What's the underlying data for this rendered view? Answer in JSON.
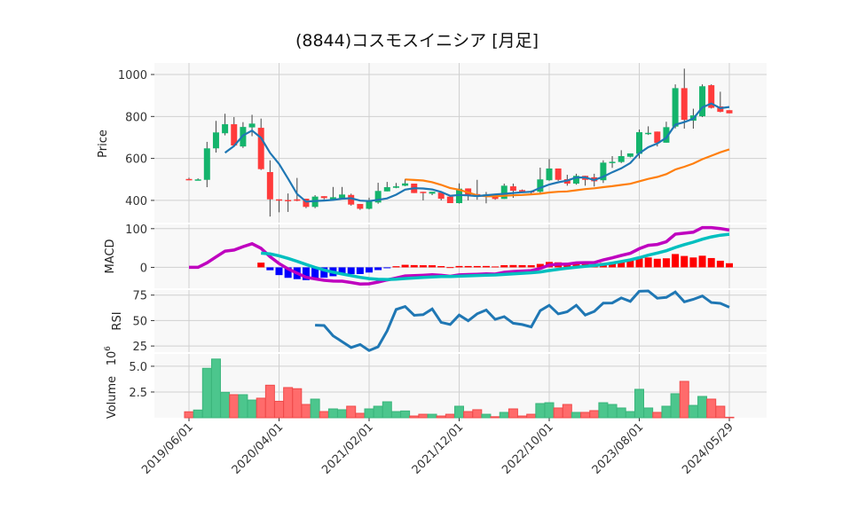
{
  "chart_data": {
    "type": "candlestick",
    "title": "(8844)コスモスイニシア  [月足]",
    "x_tick_labels": [
      {
        "index": 0,
        "label": "2019/06/01"
      },
      {
        "index": 10,
        "label": "2020/04/01"
      },
      {
        "index": 20,
        "label": "2021/02/01"
      },
      {
        "index": 30,
        "label": "2021/12/01"
      },
      {
        "index": 40,
        "label": "2022/10/01"
      },
      {
        "index": 50,
        "label": "2023/08/01"
      },
      {
        "index": 60,
        "label": "2024/05/29"
      }
    ],
    "colors": {
      "up": "#14b46c",
      "down": "#ff3b3b",
      "vol_up": "#4cc68d",
      "vol_down": "#ff6b6b",
      "ma_short": "#1f77b4",
      "ma_long": "#ff7f0e",
      "macd": "#bf00bf",
      "signal": "#00bfbf",
      "hist_pos": "#ff0000",
      "hist_neg": "#0000ff",
      "rsi": "#1f77b4",
      "grid": "#d0d0d0",
      "panel_bg": "#f8f8f8"
    },
    "price": {
      "ylabel": "Price",
      "ylim": [
        294,
        1055
      ],
      "yticks": [
        400,
        600,
        800,
        1000
      ],
      "ma_windows": [
        5,
        25
      ],
      "ohlc": [
        [
          502,
          508,
          498,
          500
        ],
        [
          498,
          505,
          496,
          500
        ],
        [
          498,
          679,
          463,
          648
        ],
        [
          648,
          779,
          628,
          724
        ],
        [
          720,
          813,
          710,
          763
        ],
        [
          763,
          797,
          660,
          662
        ],
        [
          657,
          773,
          650,
          750
        ],
        [
          748,
          808,
          706,
          766
        ],
        [
          746,
          790,
          545,
          549
        ],
        [
          535,
          591,
          323,
          405
        ],
        [
          405,
          405,
          343,
          400
        ],
        [
          402,
          433,
          345,
          400
        ],
        [
          405,
          507,
          396,
          398
        ],
        [
          408,
          408,
          363,
          369
        ],
        [
          369,
          425,
          363,
          418
        ],
        [
          420,
          420,
          405,
          411
        ],
        [
          406,
          464,
          400,
          415
        ],
        [
          411,
          464,
          408,
          428
        ],
        [
          426,
          432,
          375,
          380
        ],
        [
          383,
          383,
          355,
          360
        ],
        [
          360,
          413,
          357,
          400
        ],
        [
          390,
          484,
          384,
          445
        ],
        [
          443,
          488,
          443,
          463
        ],
        [
          460,
          483,
          458,
          467
        ],
        [
          470,
          502,
          468,
          481
        ],
        [
          480,
          480,
          435,
          435
        ],
        [
          441,
          441,
          400,
          437
        ],
        [
          432,
          441,
          425,
          441
        ],
        [
          437,
          437,
          400,
          408
        ],
        [
          418,
          418,
          387,
          387
        ],
        [
          387,
          481,
          385,
          456
        ],
        [
          457,
          457,
          400,
          426
        ],
        [
          430,
          498,
          403,
          426
        ],
        [
          424,
          440,
          386,
          428
        ],
        [
          426,
          426,
          403,
          407
        ],
        [
          407,
          480,
          407,
          470
        ],
        [
          467,
          480,
          412,
          446
        ],
        [
          449,
          452,
          438,
          441
        ],
        [
          444,
          447,
          428,
          441
        ],
        [
          441,
          556,
          428,
          500
        ],
        [
          496,
          597,
          493,
          552
        ],
        [
          552,
          552,
          493,
          498
        ],
        [
          501,
          522,
          470,
          480
        ],
        [
          480,
          527,
          475,
          517
        ],
        [
          517,
          517,
          470,
          498
        ],
        [
          510,
          527,
          466,
          491
        ],
        [
          496,
          591,
          483,
          580
        ],
        [
          581,
          611,
          555,
          584
        ],
        [
          583,
          639,
          578,
          611
        ],
        [
          608,
          624,
          605,
          624
        ],
        [
          622,
          738,
          600,
          725
        ],
        [
          718,
          753,
          712,
          722
        ],
        [
          728,
          728,
          657,
          674
        ],
        [
          675,
          775,
          675,
          749
        ],
        [
          752,
          953,
          743,
          935
        ],
        [
          935,
          1028,
          742,
          784
        ],
        [
          780,
          837,
          742,
          805
        ],
        [
          801,
          953,
          797,
          944
        ],
        [
          949,
          953,
          838,
          841
        ],
        [
          848,
          918,
          820,
          822
        ],
        [
          830,
          830,
          815,
          815
        ]
      ]
    },
    "macd": {
      "ylabel": "MACD",
      "ylim": [
        -54,
        111
      ],
      "yticks": [
        0,
        100
      ],
      "fast": 12,
      "slow": 26,
      "signal": 9,
      "start": 8
    },
    "rsi": {
      "ylabel": "RSI",
      "ylim": [
        19,
        80
      ],
      "yticks": [
        25,
        50,
        75
      ],
      "period": 14
    },
    "volume": {
      "ylabel": "Volume",
      "unit_label": "10",
      "unit_exp": "6",
      "ylim": [
        0,
        6.2
      ],
      "yticks": [
        2.5,
        5.0
      ],
      "ytick_labels": [
        "2.5",
        "5.0"
      ],
      "values_millions": [
        0.58,
        0.75,
        4.8,
        5.7,
        2.47,
        2.24,
        2.24,
        1.72,
        1.9,
        3.16,
        1.6,
        2.93,
        2.82,
        1.29,
        1.81,
        0.6,
        0.86,
        0.78,
        1.12,
        0.43,
        0.86,
        1.12,
        1.55,
        0.6,
        0.66,
        0.17,
        0.34,
        0.34,
        0.17,
        0.34,
        1.12,
        0.6,
        0.78,
        0.34,
        0.1,
        0.52,
        0.86,
        0.17,
        0.34,
        1.38,
        1.46,
        0.95,
        1.29,
        0.52,
        0.52,
        0.69,
        1.46,
        1.29,
        0.95,
        0.6,
        2.76,
        0.95,
        0.52,
        1.12,
        2.33,
        3.53,
        1.2,
        2.07,
        1.81,
        1.12,
        0.05
      ]
    }
  }
}
